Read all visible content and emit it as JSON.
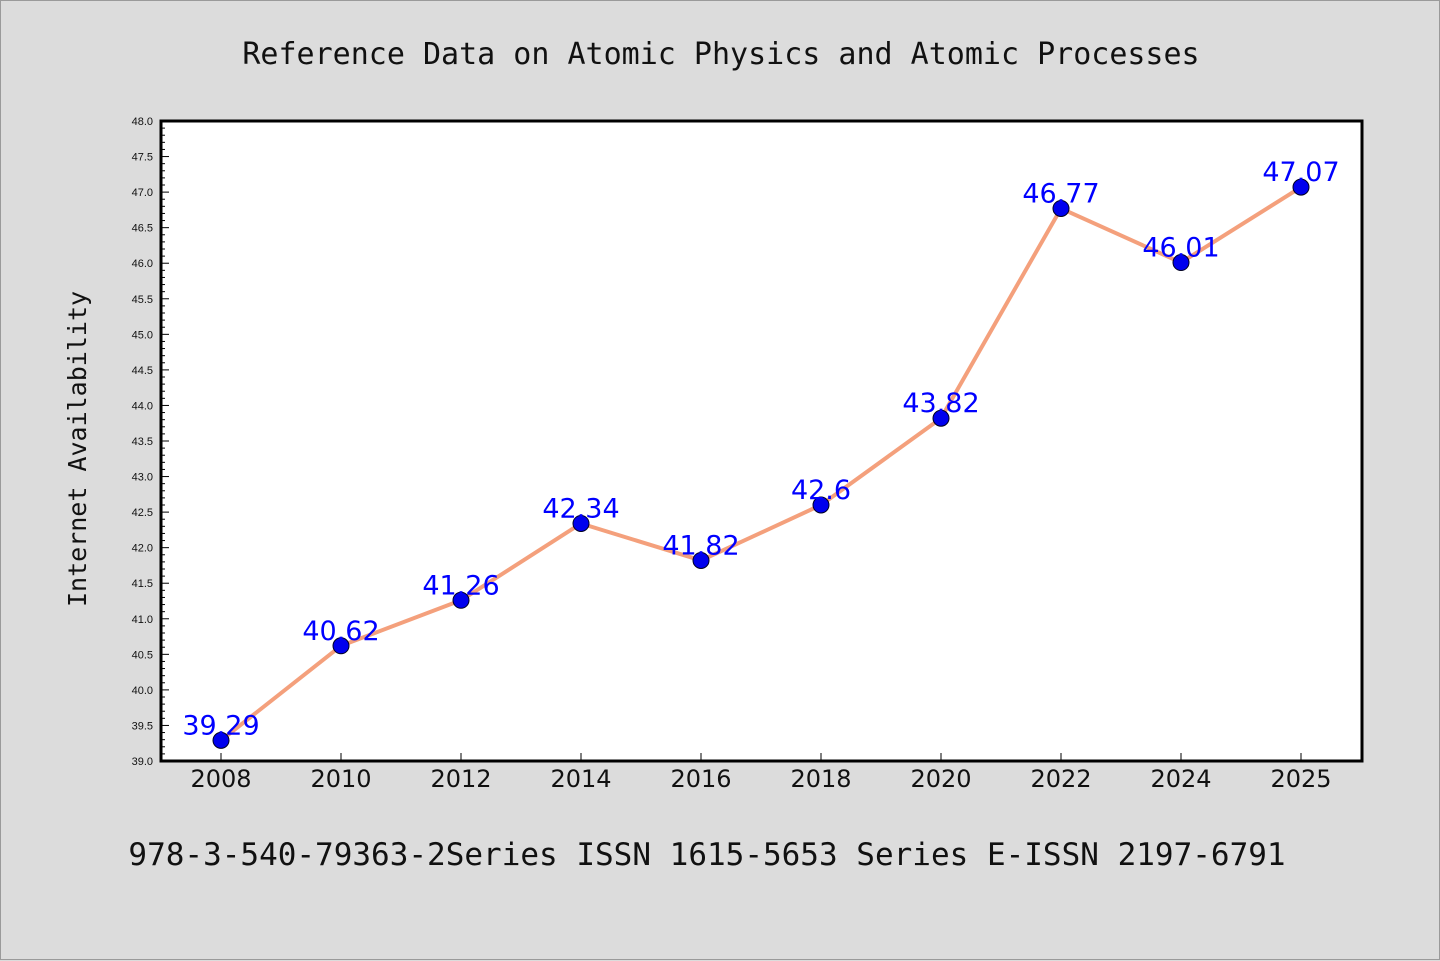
{
  "chart_data": {
    "type": "line",
    "title": "Reference Data on Atomic Physics and Atomic Processes",
    "ylabel": "Internet Availability",
    "xlabel": "",
    "footer": "978-3-540-79363-2Series ISSN 1615-5653 Series E-ISSN 2197-6791",
    "categories": [
      "2008",
      "2010",
      "2012",
      "2014",
      "2016",
      "2018",
      "2020",
      "2022",
      "2024",
      "2025"
    ],
    "values": [
      39.29,
      40.62,
      41.26,
      42.34,
      41.82,
      42.6,
      43.82,
      46.77,
      46.01,
      47.07
    ],
    "data_labels": [
      "39.29",
      "40.62",
      "41.26",
      "42.34",
      "41.82",
      "42.6",
      "43.82",
      "46.77",
      "46.01",
      "47.07"
    ],
    "ylim": [
      39.0,
      48.0
    ],
    "y_ticks": [
      "39.0",
      "39.5",
      "40.0",
      "40.5",
      "41.0",
      "41.5",
      "42.0",
      "42.5",
      "43.0",
      "43.5",
      "44.0",
      "44.5",
      "45.0",
      "45.5",
      "46.0",
      "46.5",
      "47.0",
      "47.5",
      "48.0"
    ],
    "grid": false,
    "legend": "none",
    "colors": {
      "line": "#f4a07c",
      "marker": "#0000ee",
      "label": "#0000ff",
      "background": "#dcdcdc",
      "plot_background": "#ffffff",
      "axis": "#000000",
      "text": "#111111"
    }
  }
}
